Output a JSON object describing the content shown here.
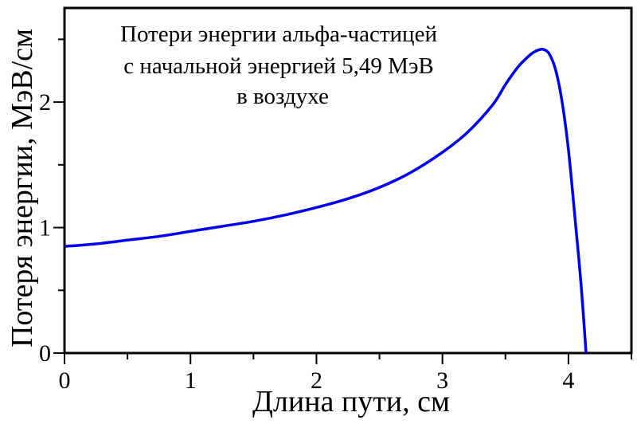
{
  "chart_data": {
    "type": "line",
    "title_lines": [
      "Потери энергии альфа-частицей",
      "с начальной энергией 5,49 МэВ",
      "в воздухе"
    ],
    "xlabel": "Длина пути, см",
    "ylabel": "Потеря энергии, МэВ/см",
    "xlim": [
      0,
      4.5
    ],
    "ylim": [
      0,
      2.75
    ],
    "x_ticks": [
      0,
      1,
      2,
      3,
      4
    ],
    "x_tick_labels": [
      "0",
      "1",
      "2",
      "3",
      "4"
    ],
    "y_ticks": [
      0,
      1,
      2
    ],
    "y_tick_labels": [
      "0",
      "1",
      "2"
    ],
    "grid": false,
    "line_color": "#0000ee",
    "series": [
      {
        "x": [
          0,
          0.25,
          0.5,
          0.75,
          1.0,
          1.25,
          1.5,
          1.75,
          2.0,
          2.25,
          2.5,
          2.75,
          3.0,
          3.2,
          3.4,
          3.5,
          3.6,
          3.7,
          3.75,
          3.8,
          3.85,
          3.9,
          3.95,
          4.0,
          4.05,
          4.1,
          4.14
        ],
        "y": [
          0.85,
          0.87,
          0.9,
          0.93,
          0.97,
          1.01,
          1.05,
          1.1,
          1.16,
          1.23,
          1.32,
          1.44,
          1.6,
          1.76,
          1.98,
          2.14,
          2.28,
          2.38,
          2.41,
          2.42,
          2.38,
          2.25,
          2.0,
          1.62,
          1.1,
          0.55,
          0.0
        ]
      }
    ]
  }
}
